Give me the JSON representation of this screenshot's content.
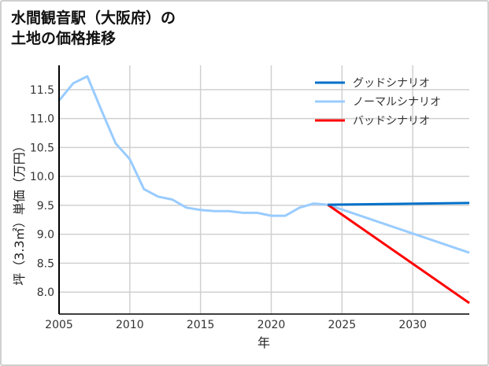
{
  "chart_data": {
    "type": "line",
    "title_line1": "水間観音駅（大阪府）の",
    "title_line2": "土地の価格推移",
    "xlabel": "年",
    "ylabel": "坪（3.3㎡）単価（万円）",
    "xlim": [
      2005,
      2034
    ],
    "ylim": [
      7.62,
      11.92
    ],
    "xticks": [
      2005,
      2010,
      2015,
      2020,
      2025,
      2030
    ],
    "yticks": [
      8.0,
      8.5,
      9.0,
      9.5,
      10.0,
      10.5,
      11.0,
      11.5
    ],
    "ytick_labels": [
      "8.0",
      "8.5",
      "9.0",
      "9.5",
      "10.0",
      "10.5",
      "11.0",
      "11.5"
    ],
    "grid": true,
    "legend_position": "top-right",
    "series": [
      {
        "name": "グッドシナリオ",
        "color": "#0070c8",
        "x": [
          2024,
          2034
        ],
        "y": [
          9.51,
          9.54
        ]
      },
      {
        "name": "ノーマルシナリオ",
        "color": "#99ccff",
        "x": [
          2005,
          2006,
          2007,
          2008,
          2009,
          2010,
          2011,
          2012,
          2013,
          2014,
          2015,
          2016,
          2017,
          2018,
          2019,
          2020,
          2021,
          2022,
          2023,
          2024,
          2034
        ],
        "y": [
          11.31,
          11.61,
          11.73,
          11.14,
          10.57,
          10.3,
          9.78,
          9.65,
          9.6,
          9.46,
          9.42,
          9.4,
          9.4,
          9.37,
          9.37,
          9.32,
          9.32,
          9.46,
          9.53,
          9.51,
          8.68
        ]
      },
      {
        "name": "バッドシナリオ",
        "color": "#ff0000",
        "x": [
          2024,
          2034
        ],
        "y": [
          9.51,
          7.81
        ]
      }
    ]
  }
}
